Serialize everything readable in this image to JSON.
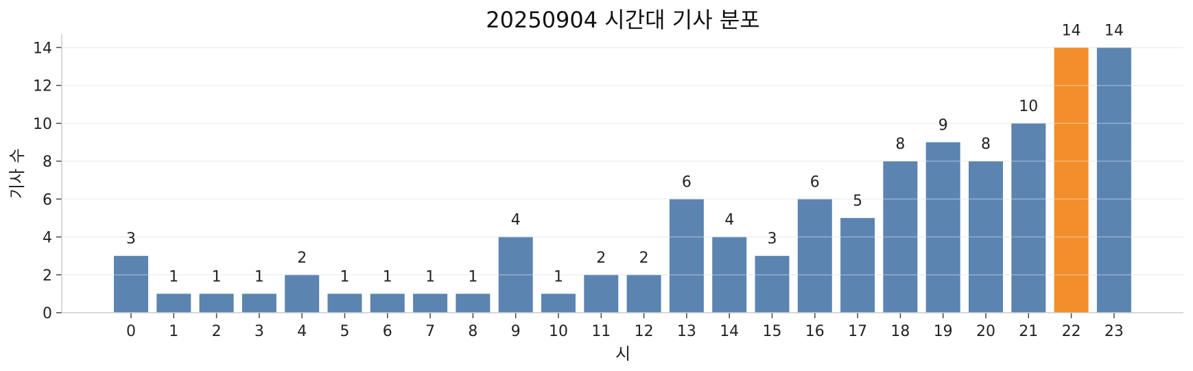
{
  "chart_data": {
    "type": "bar",
    "title": "20250904 시간대 기사 분포",
    "xlabel": "시",
    "ylabel": "기사 수",
    "categories": [
      "0",
      "1",
      "2",
      "3",
      "4",
      "5",
      "6",
      "7",
      "8",
      "9",
      "10",
      "11",
      "12",
      "13",
      "14",
      "15",
      "16",
      "17",
      "18",
      "19",
      "20",
      "21",
      "22",
      "23"
    ],
    "values": [
      3,
      1,
      1,
      1,
      2,
      1,
      1,
      1,
      1,
      4,
      1,
      2,
      2,
      6,
      4,
      3,
      6,
      5,
      8,
      9,
      8,
      10,
      14,
      14
    ],
    "highlight_index": 22,
    "ylim": [
      0,
      14.7
    ],
    "yticks": [
      0,
      2,
      4,
      6,
      8,
      10,
      12,
      14
    ],
    "grid": "horizontal",
    "colors": {
      "bar": "#5b84b1",
      "highlight": "#f28e2b",
      "grid": "#e6e6e6",
      "axis": "#cccccc"
    }
  }
}
